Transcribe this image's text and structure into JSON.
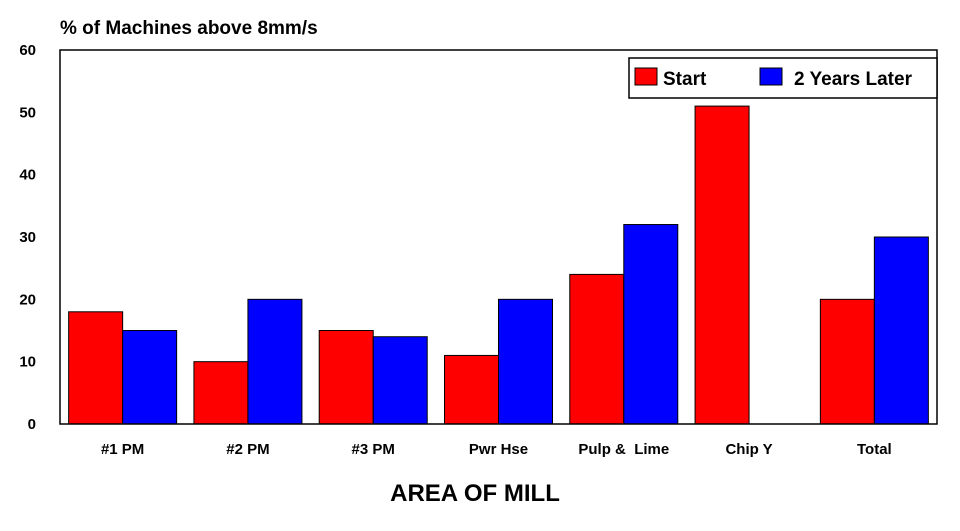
{
  "chart_data": {
    "type": "bar",
    "ylabel": "% of Machines above 8mm/s",
    "xlabel": "AREA OF MILL",
    "categories": [
      "#1 PM",
      "#2 PM",
      "#3 PM",
      "Pwr Hse",
      "Pulp &  Lime",
      "Chip Y",
      "Total"
    ],
    "series": [
      {
        "name": "Start",
        "color": "#ff0000",
        "values": [
          18,
          10,
          15,
          11,
          24,
          51,
          20
        ]
      },
      {
        "name": "2 Years Later",
        "color": "#0000ff",
        "values": [
          15,
          20,
          14,
          20,
          32,
          null,
          30
        ]
      }
    ],
    "ylim": [
      0,
      60
    ],
    "yticks": [
      0,
      10,
      20,
      30,
      40,
      50,
      60
    ],
    "grid": false,
    "legend_position": "top-right"
  }
}
